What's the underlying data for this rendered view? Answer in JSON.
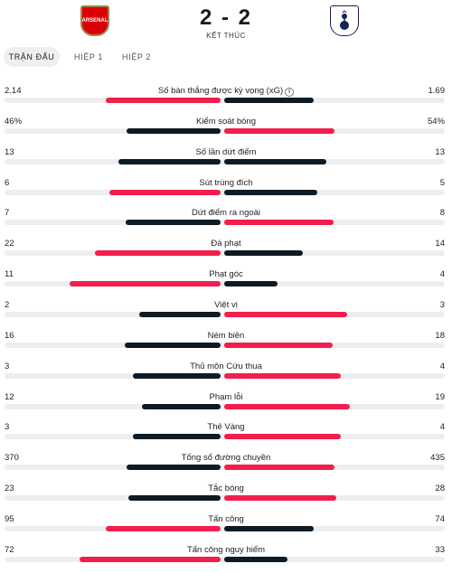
{
  "match": {
    "home_team_logo": "arsenal-crest-icon",
    "away_team_logo": "tottenham-crest-icon",
    "score": "2 - 2",
    "status": "KẾT THÚC"
  },
  "tabs": [
    {
      "label": "TRẬN ĐẤU",
      "active": true
    },
    {
      "label": "HIỆP 1",
      "active": false
    },
    {
      "label": "HIỆP 2",
      "active": false
    }
  ],
  "colors": {
    "home": "#f21e4d",
    "away": "#0d1b26",
    "track": "#eeeeee"
  },
  "stats": [
    {
      "label": "Số bàn thắng được kỳ vọng (xG)",
      "home": "2.14",
      "away": "1.69",
      "home_share": 0.559,
      "away_share": 0.441,
      "home_color": "#f21e4d",
      "away_color": "#0d1b26",
      "info": true
    },
    {
      "label": "Kiểm soát bóng",
      "home": "46%",
      "away": "54%",
      "home_share": 0.46,
      "away_share": 0.54,
      "home_color": "#0d1b26",
      "away_color": "#f21e4d"
    },
    {
      "label": "Số lần dứt điểm",
      "home": "13",
      "away": "13",
      "home_share": 0.5,
      "away_share": 0.5,
      "home_color": "#0d1b26",
      "away_color": "#0d1b26"
    },
    {
      "label": "Sút trúng đích",
      "home": "6",
      "away": "5",
      "home_share": 0.545,
      "away_share": 0.455,
      "home_color": "#f21e4d",
      "away_color": "#0d1b26"
    },
    {
      "label": "Dứt điểm ra ngoài",
      "home": "7",
      "away": "8",
      "home_share": 0.467,
      "away_share": 0.533,
      "home_color": "#0d1b26",
      "away_color": "#f21e4d"
    },
    {
      "label": "Đá phạt",
      "home": "22",
      "away": "14",
      "home_share": 0.611,
      "away_share": 0.389,
      "home_color": "#f21e4d",
      "away_color": "#0d1b26"
    },
    {
      "label": "Phạt góc",
      "home": "11",
      "away": "4",
      "home_share": 0.733,
      "away_share": 0.267,
      "home_color": "#f21e4d",
      "away_color": "#0d1b26"
    },
    {
      "label": "Việt vị",
      "home": "2",
      "away": "3",
      "home_share": 0.4,
      "away_share": 0.6,
      "home_color": "#0d1b26",
      "away_color": "#f21e4d"
    },
    {
      "label": "Ném biên",
      "home": "16",
      "away": "18",
      "home_share": 0.471,
      "away_share": 0.529,
      "home_color": "#0d1b26",
      "away_color": "#f21e4d"
    },
    {
      "label": "Thủ môn Cứu thua",
      "home": "3",
      "away": "4",
      "home_share": 0.429,
      "away_share": 0.571,
      "home_color": "#0d1b26",
      "away_color": "#f21e4d"
    },
    {
      "label": "Phạm lỗi",
      "home": "12",
      "away": "19",
      "home_share": 0.387,
      "away_share": 0.613,
      "home_color": "#0d1b26",
      "away_color": "#f21e4d"
    },
    {
      "label": "Thẻ Vàng",
      "home": "3",
      "away": "4",
      "home_share": 0.429,
      "away_share": 0.571,
      "home_color": "#0d1b26",
      "away_color": "#f21e4d"
    },
    {
      "label": "Tổng số đường chuyền",
      "home": "370",
      "away": "435",
      "home_share": 0.46,
      "away_share": 0.54,
      "home_color": "#0d1b26",
      "away_color": "#f21e4d"
    },
    {
      "label": "Tắc bóng",
      "home": "23",
      "away": "28",
      "home_share": 0.451,
      "away_share": 0.549,
      "home_color": "#0d1b26",
      "away_color": "#f21e4d"
    },
    {
      "label": "Tấn công",
      "home": "95",
      "away": "74",
      "home_share": 0.562,
      "away_share": 0.438,
      "home_color": "#f21e4d",
      "away_color": "#0d1b26"
    },
    {
      "label": "Tấn công nguy hiểm",
      "home": "72",
      "away": "33",
      "home_share": 0.686,
      "away_share": 0.314,
      "home_color": "#f21e4d",
      "away_color": "#0d1b26"
    }
  ]
}
